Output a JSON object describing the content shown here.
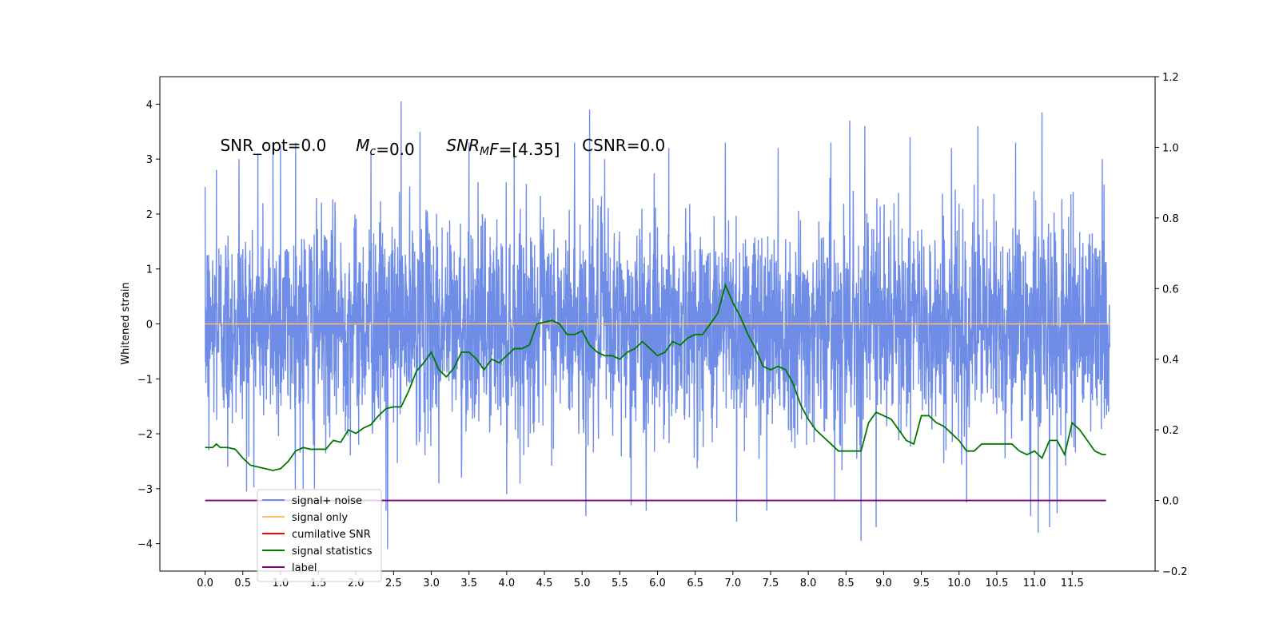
{
  "chart_data": {
    "type": "line",
    "title": "",
    "xlabel": "",
    "ylabel": "Whitened strain",
    "y2label": "",
    "xlim": [
      -0.6,
      12.6
    ],
    "ylim": [
      -4.5,
      4.5
    ],
    "y2lim": [
      -0.2,
      1.2
    ],
    "x_ticks": [
      0.0,
      0.5,
      1.0,
      1.5,
      2.0,
      2.5,
      3.0,
      3.5,
      4.0,
      4.5,
      5.0,
      5.5,
      6.0,
      6.5,
      7.0,
      7.5,
      8.0,
      8.5,
      9.0,
      9.5,
      10.0,
      10.5,
      11.0,
      11.5
    ],
    "x_tick_labels": [
      "0.0",
      "0.5",
      "1.0",
      "1.5",
      "2.0",
      "2.5",
      "3.0",
      "3.5",
      "4.0",
      "4.5",
      "5.0",
      "5.5",
      "6.0",
      "6.5",
      "7.0",
      "7.5",
      "8.0",
      "8.5",
      "9.0",
      "9.5",
      "10.0",
      "10.5",
      "11.0",
      "11.5"
    ],
    "y_ticks": [
      -4,
      -3,
      -2,
      -1,
      0,
      1,
      2,
      3,
      4
    ],
    "y_tick_labels": [
      "−4",
      "−3",
      "−2",
      "−1",
      "0",
      "1",
      "2",
      "3",
      "4"
    ],
    "y2_ticks": [
      -0.2,
      0.0,
      0.2,
      0.4,
      0.6,
      0.8,
      1.0,
      1.2
    ],
    "y2_tick_labels": [
      "−0.2",
      "0.0",
      "0.2",
      "0.4",
      "0.6",
      "0.8",
      "1.0",
      "1.2"
    ],
    "annotations": [
      {
        "x": 0.2,
        "y": 3.15,
        "parts": [
          {
            "text": "SNR_opt=0.0",
            "italic": false
          }
        ]
      },
      {
        "x": 2.0,
        "y": 3.15,
        "parts": [
          {
            "text": "M",
            "italic": true
          },
          {
            "text": "c",
            "italic": true,
            "sub": true
          },
          {
            "text": "=0.0",
            "italic": false
          }
        ]
      },
      {
        "x": 3.2,
        "y": 3.15,
        "parts": [
          {
            "text": "SNR",
            "italic": true
          },
          {
            "text": "M",
            "italic": true,
            "sub": true
          },
          {
            "text": "F",
            "italic": true
          },
          {
            "text": "=[4.35]",
            "italic": false
          }
        ]
      },
      {
        "x": 5.0,
        "y": 3.15,
        "parts": [
          {
            "text": "CSNR=0.0",
            "italic": false
          }
        ]
      }
    ],
    "legend": {
      "position": "lower-left",
      "entries": [
        {
          "label": "signal+ noise",
          "color": "#6f8de6"
        },
        {
          "label": "signal only",
          "color": "#ffbf66"
        },
        {
          "label": "cumilative SNR",
          "color": "#ff0000"
        },
        {
          "label": "signal statistics",
          "color": "#007800"
        },
        {
          "label": "label",
          "color": "#7f007f"
        }
      ],
      "hidden_text": "cumilative SNR"
    },
    "series": [
      {
        "name": "signal+ noise",
        "axis": "left",
        "color": "#6f8de6",
        "style": "noise",
        "x_range": [
          0.0,
          12.0
        ],
        "typical_band": [
          -1.6,
          1.6
        ],
        "spike_range": [
          -4.1,
          4.05
        ],
        "note_values": "dense random Gaussian-like noise, sampled at high rate",
        "peaks_high": [
          [
            0.05,
            2.3
          ],
          [
            0.15,
            2.8
          ],
          [
            0.45,
            3.0
          ],
          [
            0.7,
            3.1
          ],
          [
            0.9,
            3.3
          ],
          [
            1.0,
            3.25
          ],
          [
            1.2,
            3.3
          ],
          [
            1.45,
            2.9
          ],
          [
            2.2,
            3.1
          ],
          [
            2.6,
            4.05
          ],
          [
            2.85,
            3.5
          ],
          [
            3.5,
            3.3
          ],
          [
            4.1,
            3.2
          ],
          [
            4.9,
            3.3
          ],
          [
            5.1,
            3.9
          ],
          [
            5.3,
            3.0
          ],
          [
            6.15,
            3.2
          ],
          [
            6.9,
            3.3
          ],
          [
            7.6,
            3.2
          ],
          [
            8.3,
            3.3
          ],
          [
            8.55,
            3.7
          ],
          [
            8.75,
            3.6
          ],
          [
            9.35,
            3.4
          ],
          [
            9.9,
            3.2
          ],
          [
            10.25,
            3.6
          ],
          [
            10.75,
            3.3
          ],
          [
            11.05,
            3.6
          ],
          [
            11.1,
            3.85
          ],
          [
            11.9,
            3.0
          ]
        ],
        "peaks_low": [
          [
            0.05,
            -2.3
          ],
          [
            0.3,
            -2.6
          ],
          [
            0.55,
            -3.05
          ],
          [
            1.3,
            -3.0
          ],
          [
            1.45,
            -3.0
          ],
          [
            2.4,
            -3.4
          ],
          [
            2.42,
            -4.1
          ],
          [
            3.1,
            -2.9
          ],
          [
            3.4,
            -2.8
          ],
          [
            4.0,
            -3.1
          ],
          [
            5.05,
            -3.5
          ],
          [
            5.65,
            -3.3
          ],
          [
            5.85,
            -3.4
          ],
          [
            7.05,
            -3.6
          ],
          [
            7.45,
            -3.4
          ],
          [
            8.35,
            -3.2
          ],
          [
            8.7,
            -3.95
          ],
          [
            8.9,
            -3.7
          ],
          [
            10.1,
            -3.25
          ],
          [
            10.95,
            -3.5
          ],
          [
            11.05,
            -3.8
          ],
          [
            11.2,
            -3.7
          ],
          [
            11.3,
            -3.45
          ]
        ]
      },
      {
        "name": "signal only",
        "axis": "left",
        "color": "#ffbf66",
        "x": [
          0.0,
          12.0
        ],
        "y": [
          0.0,
          0.0
        ]
      },
      {
        "name": "cumilative SNR",
        "axis": "right",
        "color": "#ff0000",
        "x": [],
        "y": []
      },
      {
        "name": "signal statistics",
        "axis": "right",
        "color": "#007800",
        "x": [
          0.0,
          0.1,
          0.15,
          0.2,
          0.3,
          0.4,
          0.5,
          0.6,
          0.7,
          0.8,
          0.9,
          1.0,
          1.1,
          1.2,
          1.3,
          1.4,
          1.5,
          1.6,
          1.7,
          1.8,
          1.9,
          2.0,
          2.1,
          2.2,
          2.3,
          2.4,
          2.5,
          2.6,
          2.7,
          2.8,
          2.9,
          3.0,
          3.1,
          3.2,
          3.3,
          3.4,
          3.5,
          3.6,
          3.7,
          3.8,
          3.9,
          4.0,
          4.1,
          4.2,
          4.3,
          4.4,
          4.5,
          4.6,
          4.7,
          4.8,
          4.9,
          5.0,
          5.1,
          5.2,
          5.3,
          5.4,
          5.5,
          5.6,
          5.7,
          5.8,
          5.9,
          6.0,
          6.1,
          6.2,
          6.3,
          6.4,
          6.5,
          6.6,
          6.7,
          6.8,
          6.9,
          7.0,
          7.1,
          7.2,
          7.3,
          7.4,
          7.5,
          7.6,
          7.7,
          7.8,
          7.9,
          8.0,
          8.1,
          8.2,
          8.3,
          8.4,
          8.5,
          8.6,
          8.7,
          8.8,
          8.9,
          9.0,
          9.1,
          9.2,
          9.3,
          9.4,
          9.5,
          9.6,
          9.7,
          9.8,
          9.9,
          10.0,
          10.1,
          10.2,
          10.3,
          10.4,
          10.5,
          10.6,
          10.7,
          10.8,
          10.9,
          11.0,
          11.1,
          11.2,
          11.3,
          11.4,
          11.5,
          11.6,
          11.7,
          11.8,
          11.9,
          11.95
        ],
        "y": [
          0.15,
          0.15,
          0.16,
          0.15,
          0.15,
          0.145,
          0.12,
          0.1,
          0.095,
          0.09,
          0.085,
          0.09,
          0.11,
          0.14,
          0.15,
          0.145,
          0.145,
          0.145,
          0.17,
          0.165,
          0.2,
          0.19,
          0.205,
          0.215,
          0.24,
          0.26,
          0.265,
          0.265,
          0.31,
          0.365,
          0.39,
          0.42,
          0.37,
          0.35,
          0.375,
          0.42,
          0.42,
          0.4,
          0.37,
          0.4,
          0.39,
          0.41,
          0.43,
          0.43,
          0.44,
          0.5,
          0.505,
          0.51,
          0.5,
          0.47,
          0.47,
          0.48,
          0.44,
          0.42,
          0.41,
          0.41,
          0.4,
          0.42,
          0.43,
          0.45,
          0.43,
          0.41,
          0.42,
          0.45,
          0.44,
          0.46,
          0.47,
          0.47,
          0.5,
          0.53,
          0.61,
          0.56,
          0.52,
          0.47,
          0.43,
          0.38,
          0.37,
          0.38,
          0.37,
          0.33,
          0.27,
          0.23,
          0.2,
          0.18,
          0.16,
          0.14,
          0.14,
          0.14,
          0.14,
          0.22,
          0.25,
          0.24,
          0.23,
          0.2,
          0.17,
          0.16,
          0.24,
          0.24,
          0.22,
          0.21,
          0.19,
          0.17,
          0.14,
          0.14,
          0.16,
          0.16,
          0.16,
          0.16,
          0.16,
          0.14,
          0.13,
          0.14,
          0.12,
          0.17,
          0.17,
          0.13,
          0.22,
          0.2,
          0.17,
          0.14,
          0.13,
          0.13
        ]
      },
      {
        "name": "label",
        "axis": "right",
        "color": "#7f007f",
        "x": [
          0.0,
          11.95
        ],
        "y": [
          0.0,
          0.0
        ]
      }
    ]
  }
}
